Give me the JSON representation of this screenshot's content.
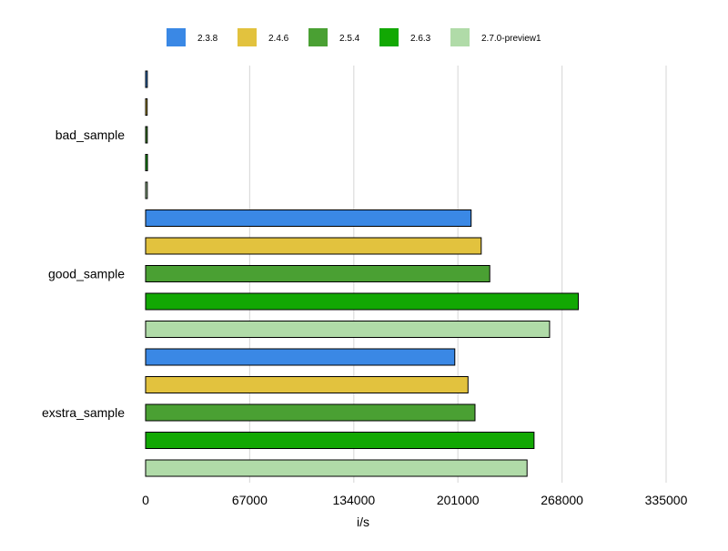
{
  "chart_data": {
    "type": "bar",
    "orientation": "horizontal",
    "title": "",
    "xlabel": "i/s",
    "ylabel": "",
    "xlim": [
      0,
      335000
    ],
    "xticks": [
      0,
      67000,
      134000,
      201000,
      268000,
      335000
    ],
    "grid": "vertical",
    "legend_position": "top",
    "categories": [
      "bad_sample",
      "good_sample",
      "exstra_sample"
    ],
    "series": [
      {
        "name": "2.3.8",
        "color": "#3a88e5",
        "values": [
          1100,
          209500,
          199000
        ]
      },
      {
        "name": "2.4.6",
        "color": "#e2c23e",
        "values": [
          1000,
          216000,
          207500
        ]
      },
      {
        "name": "2.5.4",
        "color": "#4aa033",
        "values": [
          1100,
          221500,
          212000
        ]
      },
      {
        "name": "2.6.3",
        "color": "#12a803",
        "values": [
          1200,
          278500,
          250000
        ]
      },
      {
        "name": "2.7.0-preview1",
        "color": "#b0dba8",
        "values": [
          1100,
          260000,
          245500
        ]
      }
    ]
  }
}
